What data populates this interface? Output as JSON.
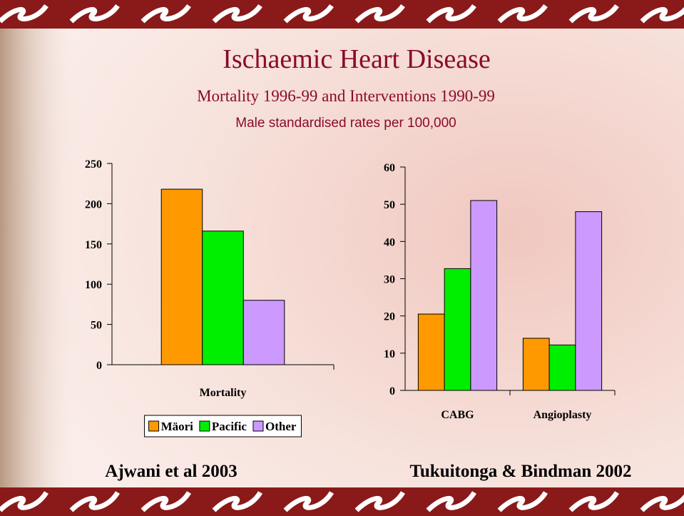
{
  "slide": {
    "title": "Ischaemic Heart Disease",
    "subtitle": "Mortality 1996-99 and Interventions 1990-99",
    "note": "Male standardised rates per 100,000"
  },
  "chart_data": [
    {
      "type": "bar",
      "categories": [
        "Mortality"
      ],
      "series": [
        {
          "name": "Mäori",
          "color": "#ff9900",
          "values": [
            218
          ]
        },
        {
          "name": "Pacific",
          "color": "#00ee00",
          "values": [
            166
          ]
        },
        {
          "name": "Other",
          "color": "#cc99ff",
          "values": [
            80
          ]
        }
      ],
      "ylim": [
        0,
        250
      ],
      "yticks": [
        0,
        50,
        100,
        150,
        200,
        250
      ],
      "legend": "bottom",
      "source": "Ajwani et al 2003"
    },
    {
      "type": "bar",
      "categories": [
        "CABG",
        "Angioplasty"
      ],
      "series": [
        {
          "name": "Mäori",
          "color": "#ff9900",
          "values": [
            20.5,
            14
          ]
        },
        {
          "name": "Pacific",
          "color": "#00ee00",
          "values": [
            32.7,
            12.2
          ]
        },
        {
          "name": "Other",
          "color": "#cc99ff",
          "values": [
            51,
            48
          ]
        }
      ],
      "ylim": [
        0,
        60
      ],
      "yticks": [
        0,
        10,
        20,
        30,
        40,
        50,
        60
      ],
      "legend": "none",
      "source": "Tukuitonga & Bindman 2002"
    }
  ]
}
